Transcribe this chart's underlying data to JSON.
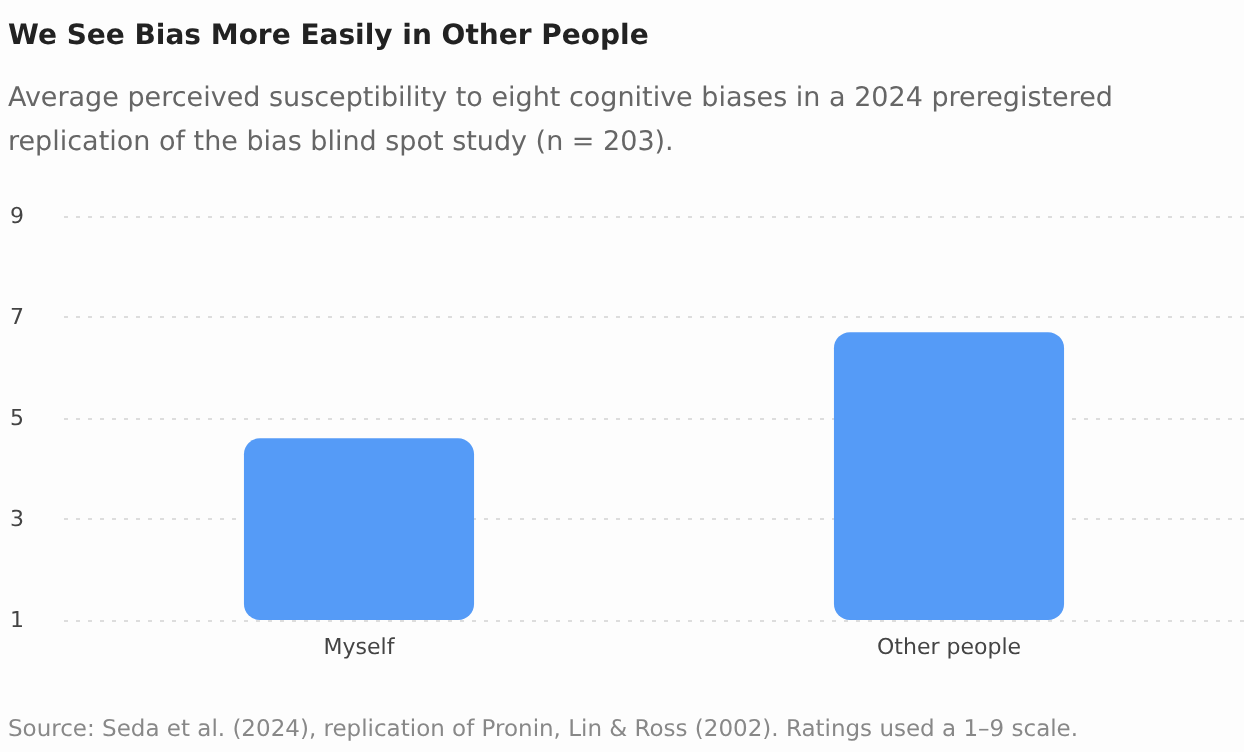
{
  "chart_data": {
    "type": "bar",
    "title": "We See Bias More Easily in Other People",
    "subtitle": "Average perceived susceptibility to eight cognitive biases in a 2024 preregistered replication of the bias blind spot study (n = 203).",
    "categories": [
      "Myself",
      "Other people"
    ],
    "values": [
      4.6,
      6.7
    ],
    "color": "#559bf7",
    "ylim": [
      1,
      9
    ],
    "yticks": [
      1,
      3,
      5,
      7,
      9
    ],
    "grid": "y",
    "annotations": [
      "Source: Seda et al. (2024), replication of Pronin, Lin & Ross (2002). Ratings used a 1–9 scale."
    ]
  }
}
